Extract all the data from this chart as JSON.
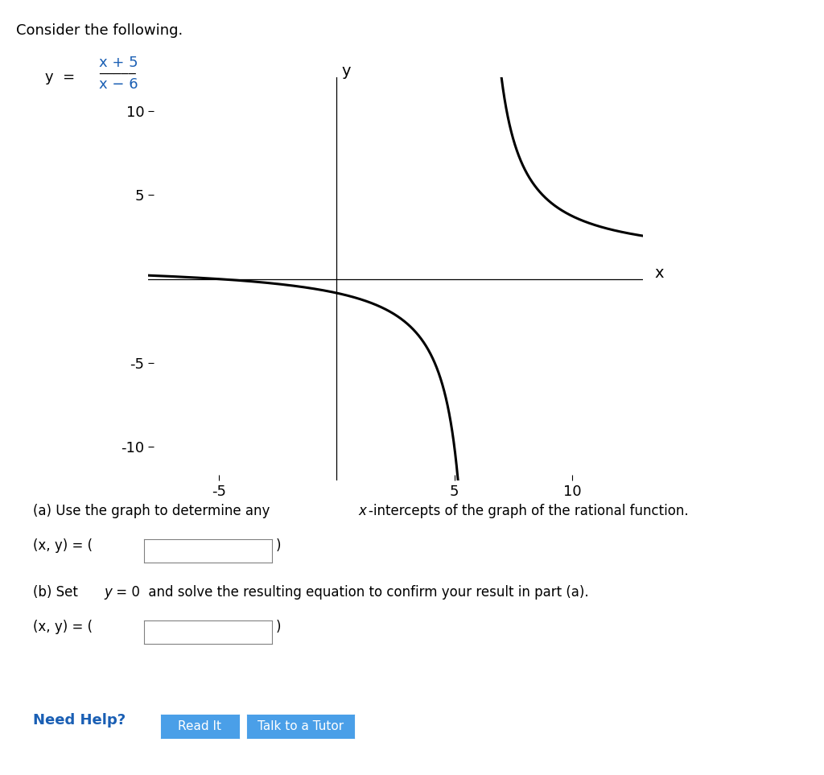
{
  "title_text": "Consider the following.",
  "formula_y": "y = ",
  "formula_num": "x + 5",
  "formula_den": "x − 6",
  "xlim": [
    -8,
    13
  ],
  "ylim": [
    -12,
    12
  ],
  "xticks": [
    -5,
    5,
    10
  ],
  "yticks": [
    -10,
    -5,
    5,
    10
  ],
  "xlabel": "x",
  "ylabel": "y",
  "axis_color": "#000000",
  "curve_color": "#000000",
  "curve_linewidth": 2.2,
  "background_color": "#ffffff",
  "part_a_text": "(a) Use the graph to determine any ",
  "part_a_italic": "x",
  "part_a_rest": "-intercepts of the graph of the rational function.",
  "part_b_text1": "(b) Set ",
  "part_b_italic_y": "y",
  "part_b_text2": " = 0  and solve the resulting equation to confirm your result in part (a).",
  "xy_label": "(x, y) = ",
  "need_help_color": "#1a5fb4",
  "need_help_text": "Need Help?",
  "button1_text": "Read It",
  "button2_text": "Talk to a Tutor",
  "button_bg": "#4a9fe8",
  "button_text_color": "#ffffff"
}
